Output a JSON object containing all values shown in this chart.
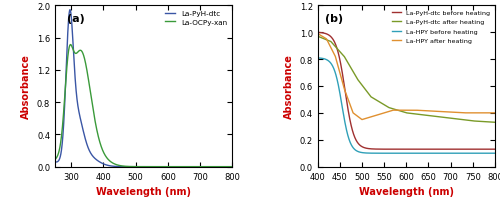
{
  "panel_a": {
    "title": "(a)",
    "xlabel": "Wavelength (nm)",
    "ylabel": "Absorbance",
    "xlim": [
      250,
      800
    ],
    "ylim": [
      0,
      2.0
    ],
    "yticks": [
      0,
      0.4,
      0.8,
      1.2,
      1.6,
      2.0
    ],
    "xticks": [
      300,
      400,
      500,
      600,
      700,
      800
    ],
    "label_color": "#cc0000",
    "curves": [
      {
        "label": "La-PyH-dtc",
        "color": "#3a56a5"
      },
      {
        "label": "La-OCPy-xan",
        "color": "#3a9a3a"
      }
    ]
  },
  "panel_b": {
    "title": "(b)",
    "xlabel": "Wavelength (nm)",
    "ylabel": "Absorbance",
    "xlim": [
      400,
      800
    ],
    "ylim": [
      0,
      1.2
    ],
    "yticks": [
      0,
      0.2,
      0.4,
      0.6,
      0.8,
      1.0,
      1.2
    ],
    "xticks": [
      400,
      450,
      500,
      550,
      600,
      650,
      700,
      750,
      800
    ],
    "label_color": "#cc0000",
    "curves": [
      {
        "label": "La-PyH-dtc before heating",
        "color": "#a03030"
      },
      {
        "label": "La-PyH-dtc after heating",
        "color": "#7a9a28"
      },
      {
        "label": "La-HPY before heating",
        "color": "#30a0b8"
      },
      {
        "label": "La-HPY after heating",
        "color": "#e09030"
      }
    ]
  }
}
